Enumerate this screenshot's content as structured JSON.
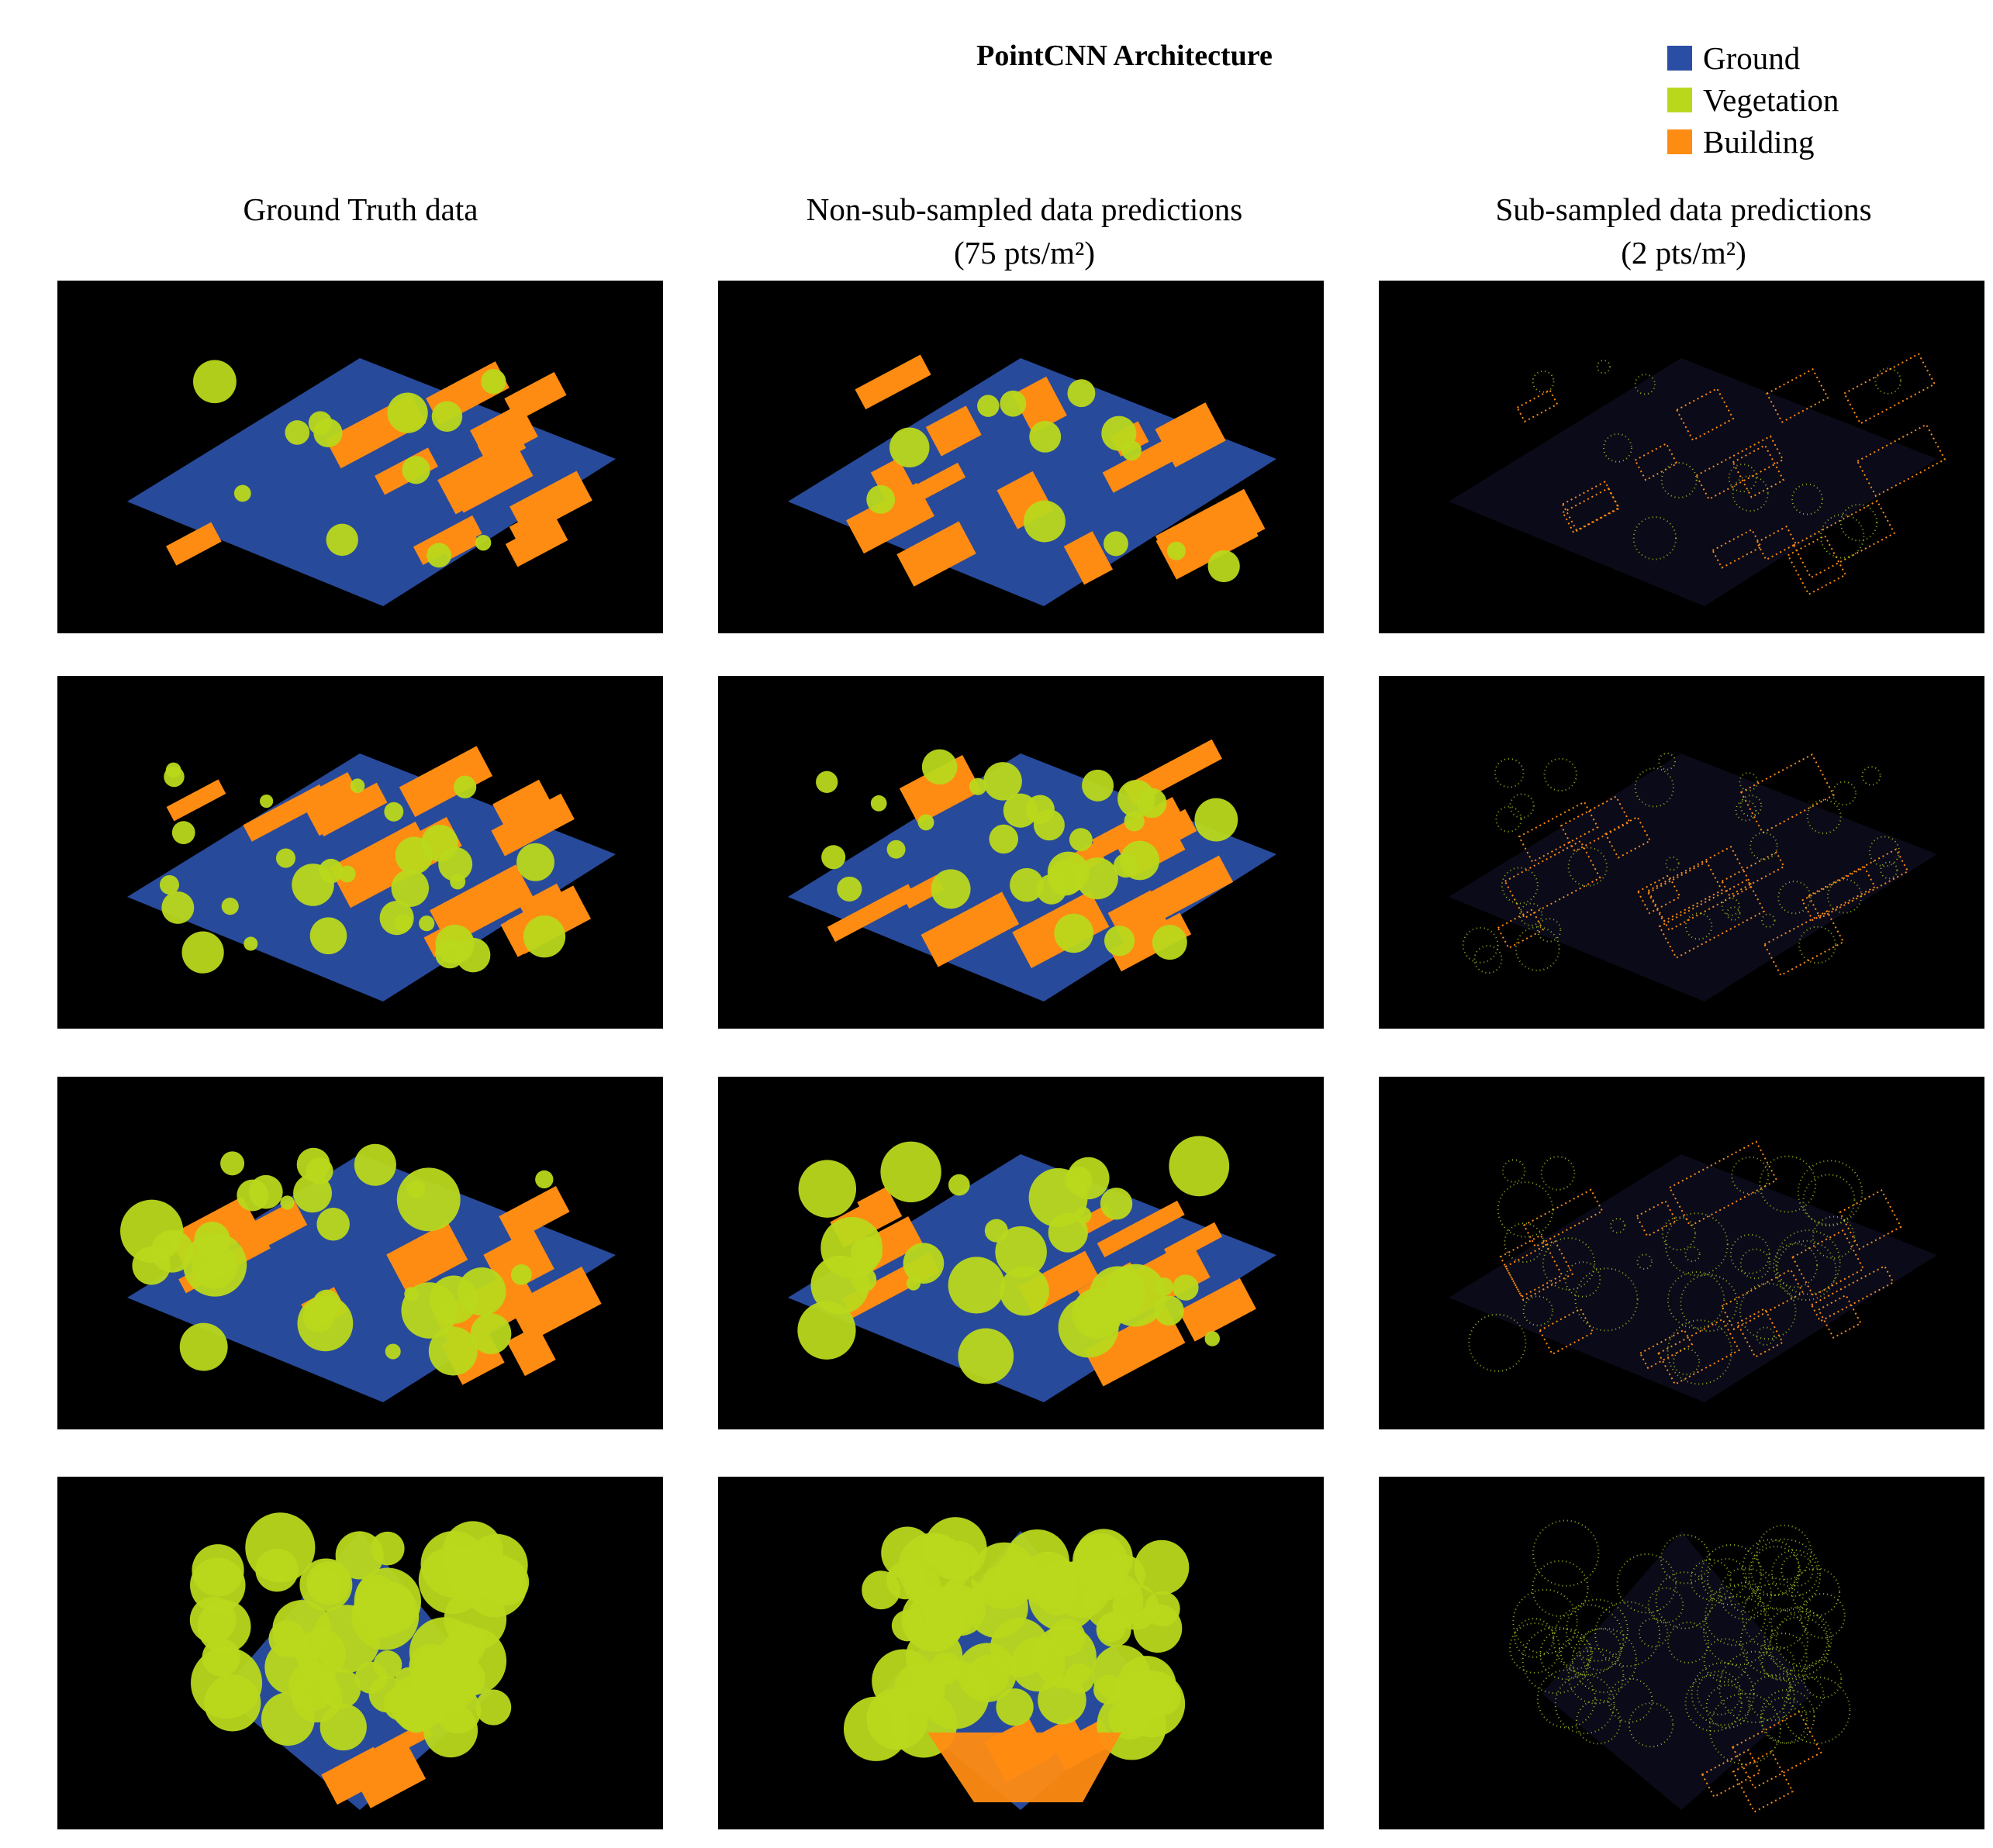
{
  "figure": {
    "title": "PointCNN Architecture",
    "legend": [
      {
        "label": "Ground",
        "color": "#2a4ea3"
      },
      {
        "label": "Vegetation",
        "color": "#b9d81c"
      },
      {
        "label": "Building",
        "color": "#ff8c12"
      }
    ],
    "columns": [
      {
        "heading": "Ground Truth data",
        "subheading": ""
      },
      {
        "heading": "Non-sub-sampled data predictions",
        "subheading": "(75 pts/m²)"
      },
      {
        "heading": "Sub-sampled data predictions",
        "subheading": "(2 pts/m²)"
      }
    ],
    "panels": [
      {
        "row": 1,
        "column": 1,
        "content": "point cloud",
        "dominant": "building"
      },
      {
        "row": 1,
        "column": 2,
        "content": "point cloud",
        "dominant": "building"
      },
      {
        "row": 1,
        "column": 3,
        "content": "sparse point cloud",
        "dominant": "vegetation"
      },
      {
        "row": 2,
        "column": 1,
        "content": "point cloud",
        "dominant": "ground"
      },
      {
        "row": 2,
        "column": 2,
        "content": "point cloud",
        "dominant": "building"
      },
      {
        "row": 2,
        "column": 3,
        "content": "sparse point cloud",
        "dominant": "vegetation"
      },
      {
        "row": 3,
        "column": 1,
        "content": "point cloud",
        "dominant": "building"
      },
      {
        "row": 3,
        "column": 2,
        "content": "point cloud",
        "dominant": "building"
      },
      {
        "row": 3,
        "column": 3,
        "content": "sparse point cloud",
        "dominant": "vegetation"
      },
      {
        "row": 4,
        "column": 1,
        "content": "point cloud",
        "dominant": "vegetation"
      },
      {
        "row": 4,
        "column": 2,
        "content": "point cloud",
        "dominant": "vegetation"
      },
      {
        "row": 4,
        "column": 3,
        "content": "sparse point cloud",
        "dominant": "vegetation"
      }
    ]
  }
}
